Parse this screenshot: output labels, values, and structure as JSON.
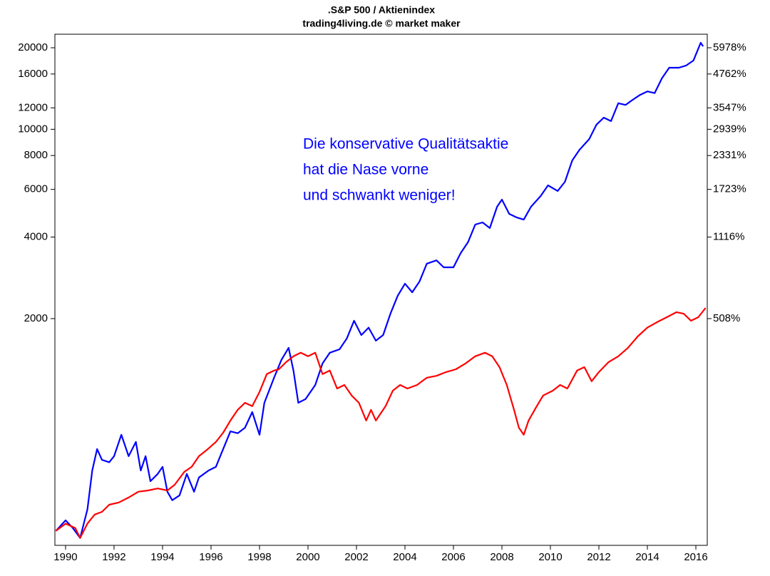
{
  "chart_data": {
    "type": "line",
    "title": ".S&P 500 / Aktienindex",
    "subtitle": "trading4living.de © market maker",
    "annotation": [
      "Die konservative Qualitätsaktie",
      "hat die Nase vorne",
      "und schwankt weniger!"
    ],
    "annotation_color": "#0000ff",
    "log_y": true,
    "xlim": [
      1989.56,
      2016.47
    ],
    "xticks": [
      1990,
      1992,
      1994,
      1996,
      1998,
      2000,
      2002,
      2004,
      2006,
      2008,
      2010,
      2012,
      2014,
      2016
    ],
    "ylim": [
      291,
      22440
    ],
    "yticks": [
      2000,
      4000,
      6000,
      8000,
      10000,
      12000,
      16000,
      20000
    ],
    "y2lim": [
      291,
      22440
    ],
    "y2ticks": [
      {
        "value": 2000,
        "label": "508%"
      },
      {
        "value": 4000,
        "label": "1116%"
      },
      {
        "value": 6000,
        "label": "1723%"
      },
      {
        "value": 8000,
        "label": "2331%"
      },
      {
        "value": 10000,
        "label": "2939%"
      },
      {
        "value": 12000,
        "label": "3547%"
      },
      {
        "value": 16000,
        "label": "4762%"
      },
      {
        "value": 20000,
        "label": "5978%"
      }
    ],
    "series": [
      {
        "color": "#0000ff",
        "x": [
          1989.6,
          1990.0,
          1990.3,
          1990.6,
          1990.9,
          1991.1,
          1991.3,
          1991.5,
          1991.8,
          1992.0,
          1992.3,
          1992.6,
          1992.9,
          1993.1,
          1993.3,
          1993.5,
          1993.8,
          1994.0,
          1994.2,
          1994.4,
          1994.7,
          1995.0,
          1995.3,
          1995.5,
          1995.9,
          1996.2,
          1996.5,
          1996.8,
          1997.1,
          1997.4,
          1997.7,
          1998.0,
          1998.2,
          1998.6,
          1998.9,
          1999.2,
          1999.4,
          1999.6,
          1999.9,
          2000.3,
          2000.6,
          2000.9,
          2001.3,
          2001.6,
          2001.9,
          2002.2,
          2002.5,
          2002.8,
          2003.1,
          2003.4,
          2003.7,
          2004.0,
          2004.3,
          2004.6,
          2004.9,
          2005.3,
          2005.6,
          2006.0,
          2006.3,
          2006.6,
          2006.9,
          2007.2,
          2007.5,
          2007.8,
          2008.0,
          2008.3,
          2008.6,
          2008.9,
          2009.2,
          2009.6,
          2009.9,
          2010.3,
          2010.6,
          2010.9,
          2011.2,
          2011.6,
          2011.9,
          2012.2,
          2012.5,
          2012.8,
          2013.1,
          2013.4,
          2013.7,
          2014.0,
          2014.3,
          2014.6,
          2014.9,
          2015.3,
          2015.6,
          2015.9,
          2016.2,
          2016.3
        ],
        "values": [
          329,
          360,
          337,
          310,
          395,
          550,
          660,
          602,
          590,
          621,
          745,
          621,
          701,
          550,
          621,
          502,
          534,
          567,
          459,
          427,
          445,
          534,
          459,
          518,
          550,
          567,
          660,
          767,
          755,
          791,
          904,
          745,
          978,
          1210,
          1406,
          1560,
          1286,
          978,
          1009,
          1138,
          1366,
          1496,
          1541,
          1688,
          1964,
          1739,
          1852,
          1658,
          1739,
          2085,
          2428,
          2692,
          2502,
          2741,
          3190,
          3283,
          3092,
          3092,
          3492,
          3828,
          4450,
          4530,
          4318,
          5176,
          5500,
          4873,
          4730,
          4640,
          5176,
          5674,
          6210,
          5920,
          6400,
          7674,
          8400,
          9200,
          10400,
          11040,
          10720,
          12480,
          12300,
          12860,
          13400,
          13800,
          13600,
          15420,
          16880,
          16880,
          17200,
          17940,
          20860,
          20240
        ]
      },
      {
        "color": "#ff0000",
        "x": [
          1989.6,
          1990.0,
          1990.4,
          1990.6,
          1990.9,
          1991.2,
          1991.5,
          1991.8,
          1992.2,
          1992.6,
          1993.0,
          1993.4,
          1993.8,
          1994.2,
          1994.5,
          1994.9,
          1995.2,
          1995.5,
          1995.8,
          1996.2,
          1996.5,
          1996.8,
          1997.1,
          1997.4,
          1997.7,
          1998.0,
          1998.3,
          1998.6,
          1998.8,
          1999.1,
          1999.4,
          1999.7,
          2000.0,
          2000.3,
          2000.6,
          2000.9,
          2001.2,
          2001.5,
          2001.8,
          2002.1,
          2002.4,
          2002.6,
          2002.8,
          2003.2,
          2003.5,
          2003.8,
          2004.1,
          2004.5,
          2004.9,
          2005.3,
          2005.7,
          2006.1,
          2006.5,
          2006.9,
          2007.3,
          2007.6,
          2007.9,
          2008.2,
          2008.5,
          2008.7,
          2008.9,
          2009.1,
          2009.4,
          2009.7,
          2010.1,
          2010.4,
          2010.7,
          2011.1,
          2011.4,
          2011.7,
          2012.0,
          2012.4,
          2012.8,
          2013.2,
          2013.6,
          2014.0,
          2014.4,
          2014.8,
          2015.2,
          2015.5,
          2015.8,
          2016.1,
          2016.4
        ],
        "values": [
          329,
          350,
          337,
          310,
          350,
          378,
          387,
          411,
          419,
          437,
          459,
          464,
          472,
          464,
          487,
          544,
          567,
          621,
          652,
          701,
          758,
          841,
          921,
          978,
          950,
          1072,
          1248,
          1286,
          1300,
          1382,
          1452,
          1496,
          1452,
          1496,
          1248,
          1286,
          1104,
          1138,
          1040,
          978,
          841,
          921,
          841,
          950,
          1084,
          1138,
          1104,
          1138,
          1210,
          1230,
          1270,
          1300,
          1366,
          1452,
          1496,
          1452,
          1324,
          1138,
          921,
          791,
          745,
          841,
          938,
          1040,
          1084,
          1138,
          1104,
          1286,
          1324,
          1174,
          1270,
          1382,
          1452,
          1560,
          1718,
          1852,
          1941,
          2024,
          2112,
          2085,
          1964,
          2024,
          2190
        ]
      }
    ]
  }
}
